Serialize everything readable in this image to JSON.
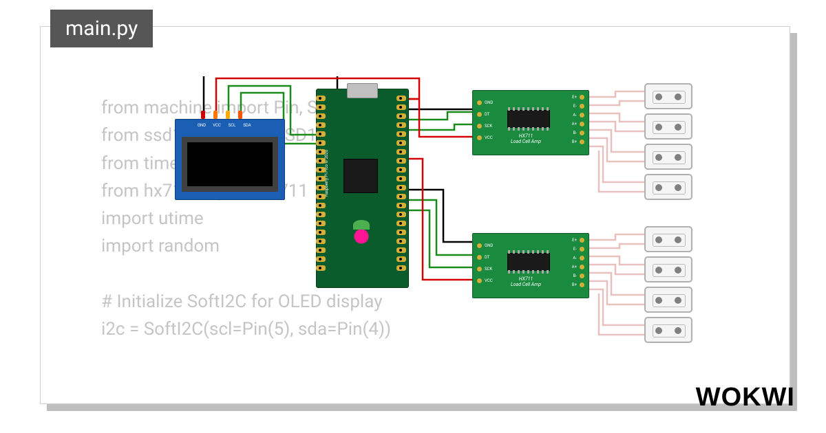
{
  "tab": {
    "filename": "main.py"
  },
  "code": {
    "lines": [
      "from machine import Pin, SoftI2C",
      "from ssd1306 import SSD1306_I2C",
      "from time import sleep",
      "from hx711 import HX711",
      "import utime",
      "import random",
      "",
      "# Initialize SoftI2C for OLED display",
      "i2c = SoftI2C(scl=Pin(5), sda=Pin(4))"
    ]
  },
  "logo": "WOKWI",
  "oled": {
    "pins": [
      "GND",
      "VCC",
      "SCL",
      "SDA"
    ]
  },
  "pico": {
    "label": "Raspberry Pi Pico © 2020",
    "pin_count_side": 20
  },
  "hx711": {
    "title_line1": "HX711",
    "title_line2": "Load Cell Amp",
    "chip_label": "HX711",
    "left_pins": [
      "GND",
      "DT",
      "SCK",
      "VCC"
    ],
    "right_pins": [
      "E+",
      "E-",
      "A-",
      "A+",
      "B-",
      "B+"
    ]
  },
  "loadcells": {
    "per_group": 4,
    "groups": 2
  },
  "wire_colors": {
    "gnd": "#000000",
    "vcc": "#d40000",
    "data": "#1a8a1a",
    "loadcell": "#eabfbf"
  },
  "styling": {
    "card_bg": "#ffffff",
    "shadow_color": "#bfbfbf",
    "tab_bg": "#565656",
    "tab_fg": "#ffffff",
    "code_fg": "#c5c5c5",
    "code_fontsize": 26,
    "oled_body": "#1a5fb4",
    "oled_screen": "#000000",
    "pico_pcb": "#0a5c2c",
    "hx711_pcb": "#1a8a3f",
    "pad_color": "#d4af37",
    "loadcell_border": "#b0b0b0",
    "loadcell_bg": "#f5f5f5"
  }
}
